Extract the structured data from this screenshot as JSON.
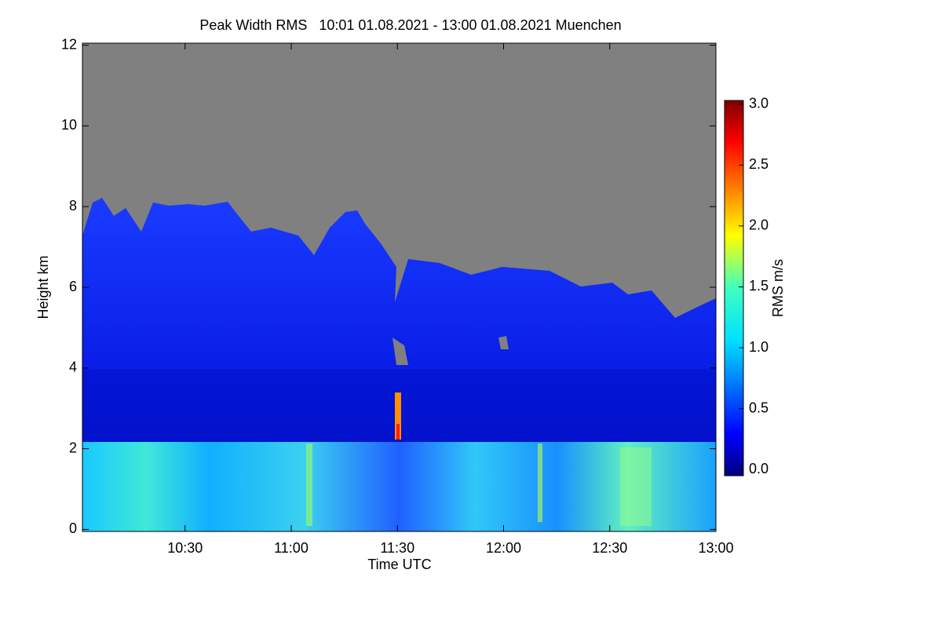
{
  "chart_data": {
    "type": "heatmap",
    "title": "Peak Width RMS   10:01 01.08.2021 - 13:00 01.08.2021 Muenchen",
    "xlabel": "Time UTC",
    "ylabel": "Height km",
    "xlim": [
      601,
      780
    ],
    "xticks": [
      {
        "value": 630,
        "label": "10:30"
      },
      {
        "value": 660,
        "label": "11:00"
      },
      {
        "value": 690,
        "label": "11:30"
      },
      {
        "value": 720,
        "label": "12:00"
      },
      {
        "value": 750,
        "label": "12:30"
      },
      {
        "value": 780,
        "label": "13:00"
      }
    ],
    "ylim": [
      -0.05,
      12.05
    ],
    "yticks": [
      0,
      2,
      4,
      6,
      8,
      10,
      12
    ],
    "colorbar": {
      "label": "RMS m/s",
      "lim": [
        -0.05,
        3.03
      ],
      "ticks": [
        {
          "value": 0,
          "label": "0.0"
        },
        {
          "value": 0.5,
          "label": "0.5"
        },
        {
          "value": 1,
          "label": "1.0"
        },
        {
          "value": 1.5,
          "label": "1.5"
        },
        {
          "value": 2,
          "label": "2.0"
        },
        {
          "value": 2.5,
          "label": "2.5"
        },
        {
          "value": 3,
          "label": "3.0"
        }
      ]
    }
  }
}
